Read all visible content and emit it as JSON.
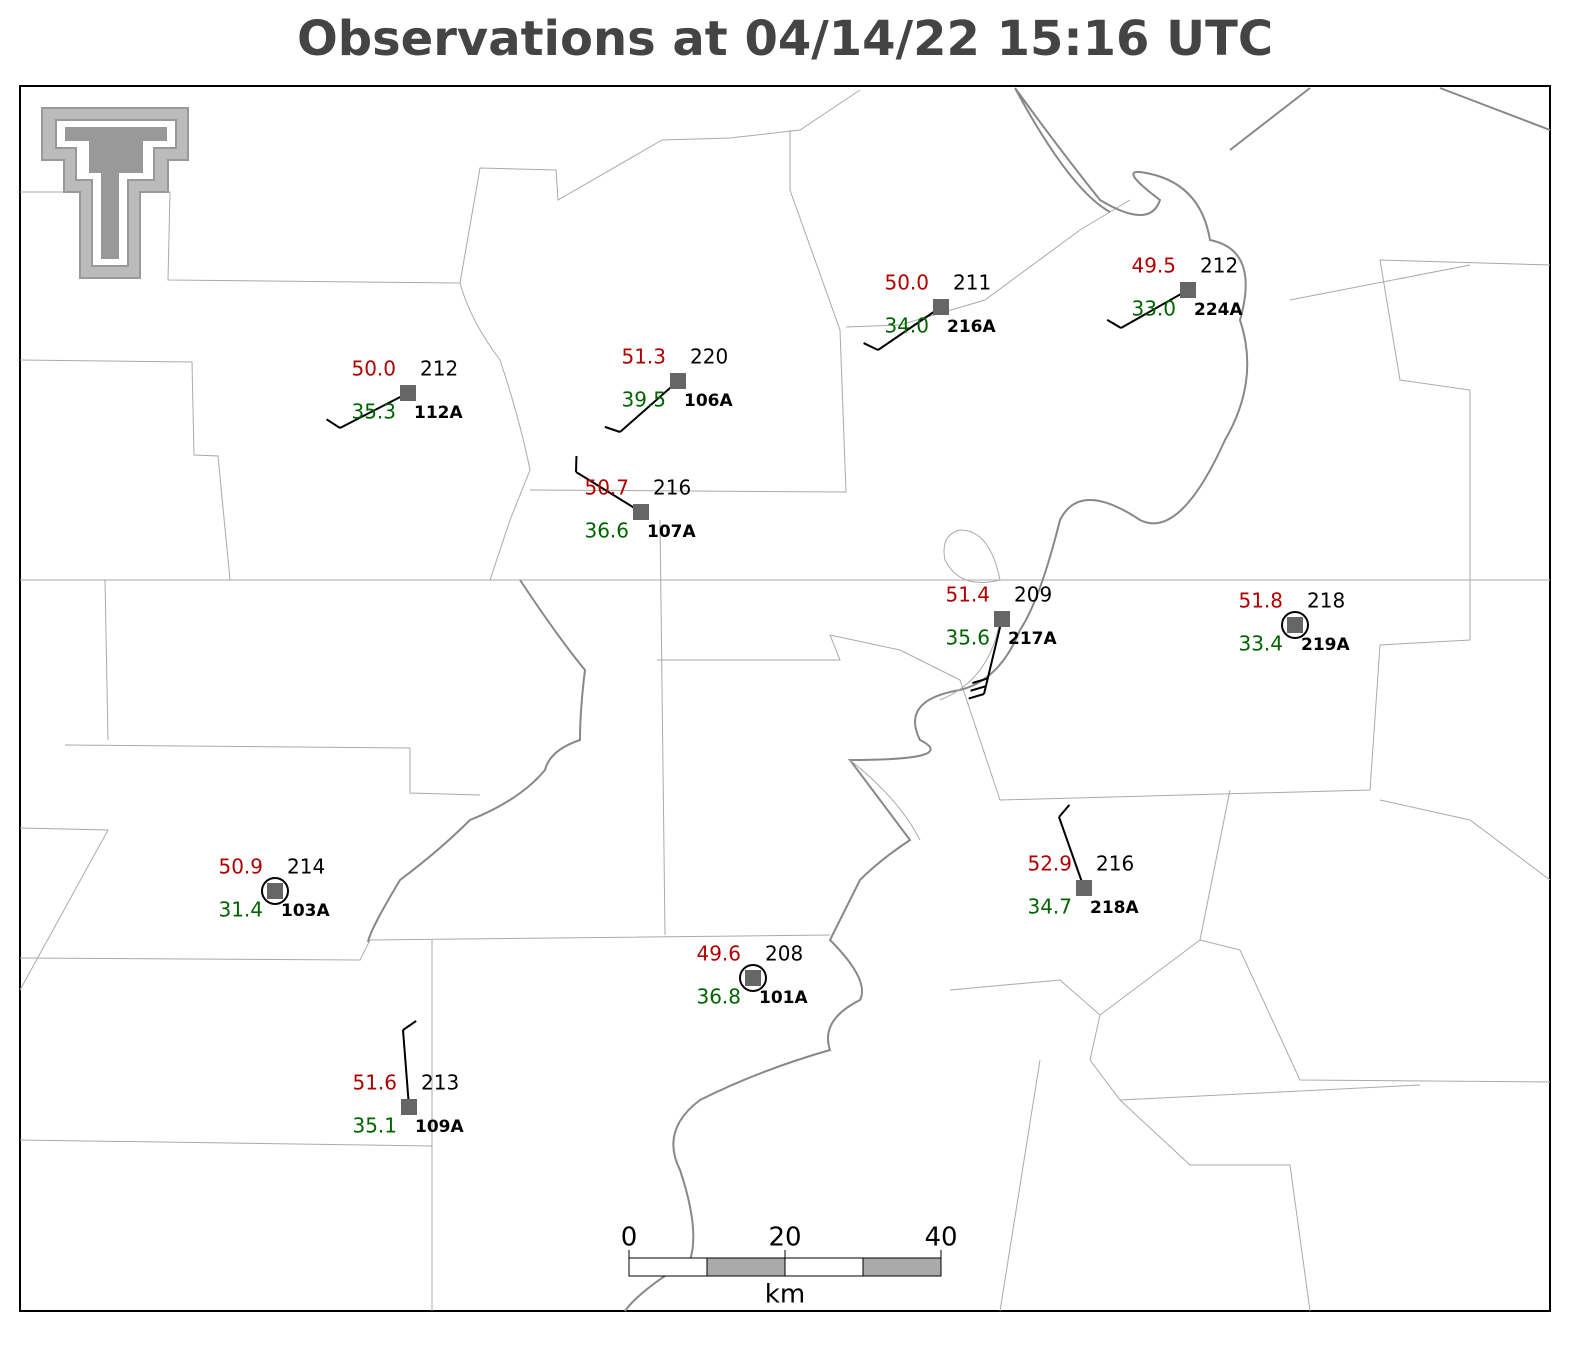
{
  "title": "Observations at 04/14/22 15:16 UTC",
  "stations": [
    {
      "id": "112A",
      "temperature": "50.0",
      "dewpoint": "35.3",
      "pressure": "212"
    },
    {
      "id": "106A",
      "temperature": "51.3",
      "dewpoint": "39.5",
      "pressure": "220"
    },
    {
      "id": "107A",
      "temperature": "50.7",
      "dewpoint": "36.6",
      "pressure": "216"
    },
    {
      "id": "216A",
      "temperature": "50.0",
      "dewpoint": "34.0",
      "pressure": "211"
    },
    {
      "id": "224A",
      "temperature": "49.5",
      "dewpoint": "33.0",
      "pressure": "212"
    },
    {
      "id": "217A",
      "temperature": "51.4",
      "dewpoint": "35.6",
      "pressure": "209"
    },
    {
      "id": "219A",
      "temperature": "51.8",
      "dewpoint": "33.4",
      "pressure": "218"
    },
    {
      "id": "103A",
      "temperature": "50.9",
      "dewpoint": "31.4",
      "pressure": "214"
    },
    {
      "id": "218A",
      "temperature": "52.9",
      "dewpoint": "34.7",
      "pressure": "216"
    },
    {
      "id": "101A",
      "temperature": "49.6",
      "dewpoint": "36.8",
      "pressure": "208"
    },
    {
      "id": "109A",
      "temperature": "51.6",
      "dewpoint": "35.1",
      "pressure": "213"
    }
  ],
  "scale_bar": {
    "ticks": [
      0,
      20,
      40
    ],
    "unit": "km"
  }
}
